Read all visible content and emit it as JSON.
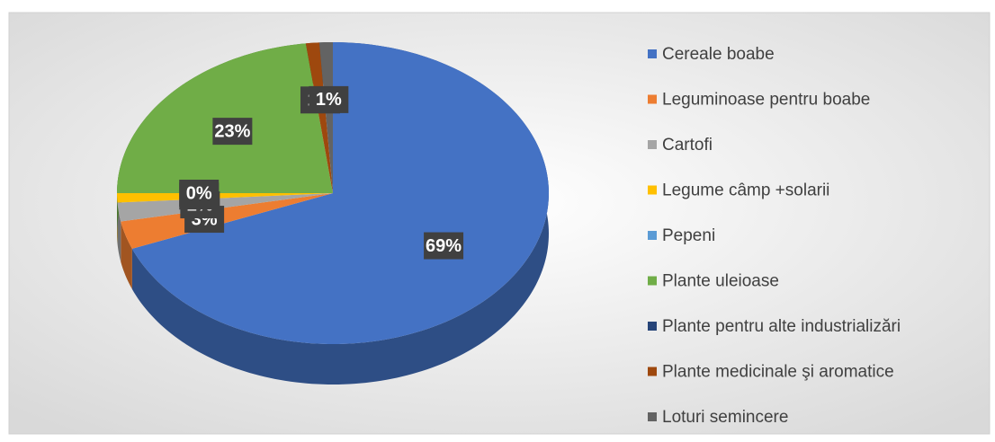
{
  "chart_data": {
    "type": "pie3d",
    "categories": [
      "Cereale boabe",
      "Leguminoase pentru boabe",
      "Cartofi",
      "Legume câmp +solarii",
      "Pepeni",
      "Plante uleioase",
      "Plante pentru alte industrializări",
      "Plante medicinale şi aromatice",
      "Loturi semincere"
    ],
    "values": [
      69,
      3,
      2,
      1,
      0,
      23,
      0,
      1,
      1
    ],
    "value_labels": [
      "69%",
      "3%",
      "2%",
      "1%",
      "0%",
      "23%",
      null,
      "1%",
      "1%"
    ],
    "colors": [
      "#4472c4",
      "#ed7d31",
      "#a5a5a5",
      "#ffc000",
      "#5b9bd5",
      "#70ad47",
      "#264478",
      "#9e480e",
      "#636363"
    ],
    "legend": "right"
  }
}
